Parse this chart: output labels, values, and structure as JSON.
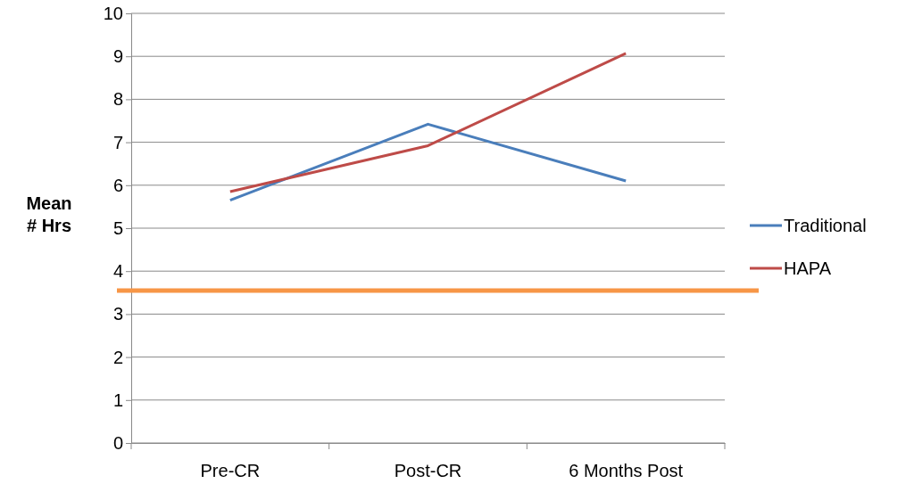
{
  "chart_data": {
    "type": "line",
    "ylabel": "Mean # Hrs",
    "categories": [
      "Pre-CR",
      "Post-CR",
      "6 Months Post"
    ],
    "series": [
      {
        "name": "Traditional",
        "color": "#4a7ebb",
        "values": [
          5.65,
          7.42,
          6.1
        ]
      },
      {
        "name": "HAPA",
        "color": "#be4b48",
        "values": [
          5.85,
          6.92,
          9.07
        ]
      }
    ],
    "ylim": [
      0,
      10
    ],
    "yticks": [
      0,
      1,
      2,
      3,
      4,
      5,
      6,
      7,
      8,
      9,
      10
    ],
    "grid": "y",
    "legend": "right",
    "marker": "none",
    "line_style": "solid",
    "ref_lines": [
      {
        "axis": "y",
        "value": 3.55,
        "color": "#f79646"
      }
    ]
  }
}
